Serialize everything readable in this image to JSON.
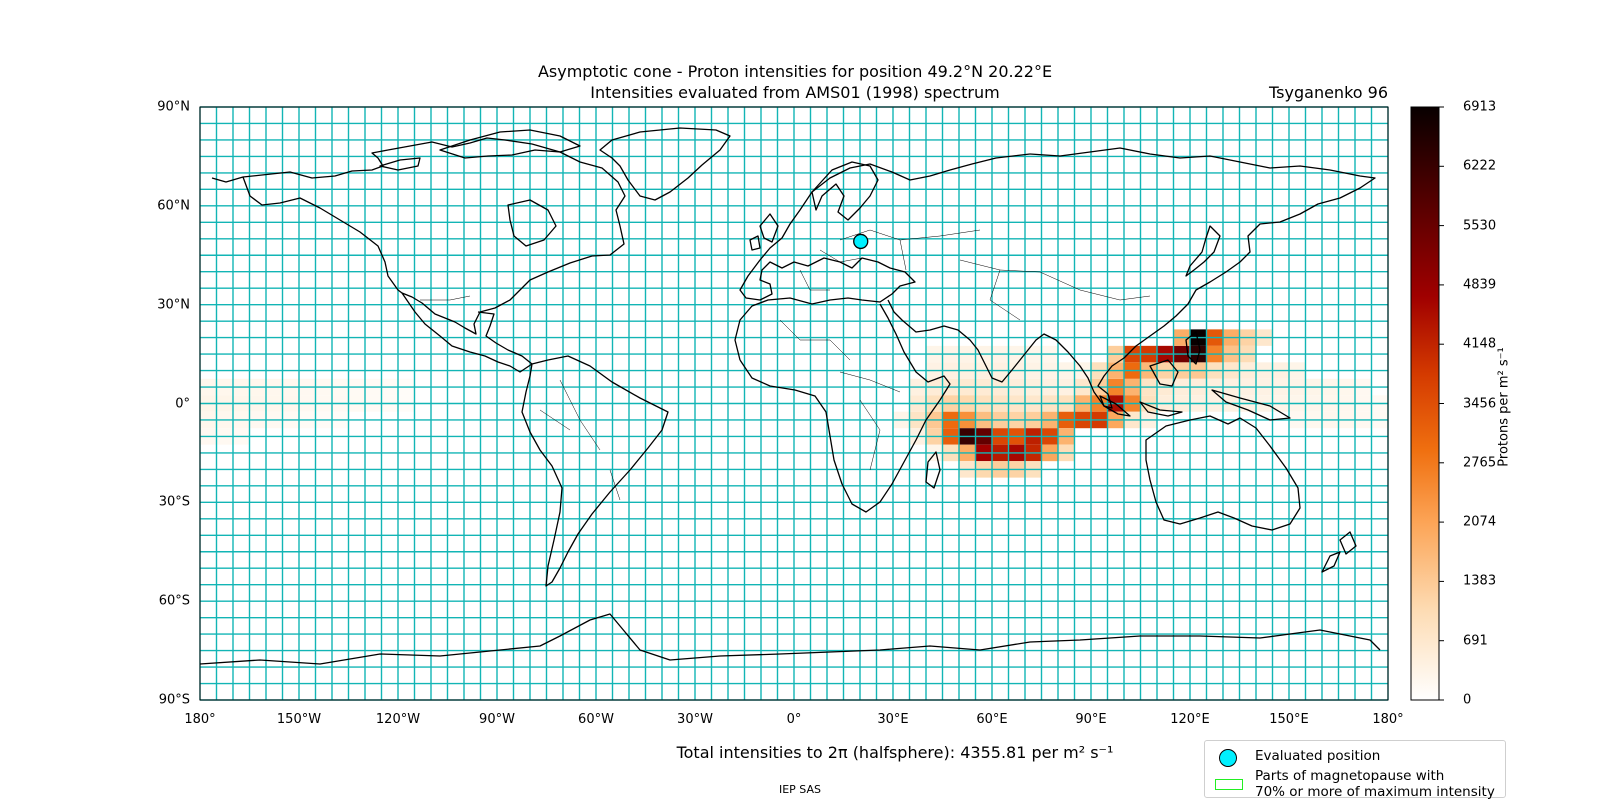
{
  "title": "Asymptotic cone - Proton intensities for position 49.2°N 20.22°E",
  "subtitle": "Intensities evaluated from AMS01 (1998) spectrum",
  "model": "Tsyganenko 96",
  "totals": "Total intensities to 2π (halfsphere): 4355.81 per m² s⁻¹",
  "institute": "IEP SAS",
  "lat_ticks": [
    "90°N",
    "60°N",
    "30°N",
    "0°",
    "30°S",
    "60°S",
    "90°S"
  ],
  "lon_ticks": [
    "180°",
    "150°W",
    "120°W",
    "90°W",
    "60°W",
    "30°W",
    "0°",
    "30°E",
    "60°E",
    "90°E",
    "120°E",
    "150°E",
    "180°"
  ],
  "colorbar": {
    "label": "Protons per m² s⁻¹",
    "ticks": [
      "0",
      "691",
      "1383",
      "2074",
      "2765",
      "3456",
      "4148",
      "4839",
      "5530",
      "6222",
      "6913"
    ],
    "range": [
      0,
      6913
    ],
    "colormap": "gist_heat_r"
  },
  "legend": {
    "marker_label": "Evaluated position",
    "magnetopause_label": "Parts of magnetopause with\n70% or more of maximum intensity",
    "marker_color": "#00f0ff",
    "magnetopause_color": "#22ee22"
  },
  "evaluated_position": {
    "lat": 49.2,
    "lon": 20.22
  },
  "grid": {
    "dlon": 5,
    "dlat": 5,
    "color": "#12b5b5"
  },
  "map_data": {
    "type": "heatmap",
    "projection": "plate-carree",
    "cells": [
      {
        "lon": -180,
        "lat": 5,
        "v": 250
      },
      {
        "lon": -175,
        "lat": 5,
        "v": 250
      },
      {
        "lon": -170,
        "lat": 5,
        "v": 250
      },
      {
        "lon": -165,
        "lat": 5,
        "v": 250
      },
      {
        "lon": -160,
        "lat": 5,
        "v": 230
      },
      {
        "lon": -155,
        "lat": 5,
        "v": 220
      },
      {
        "lon": -150,
        "lat": 5,
        "v": 200
      },
      {
        "lon": -145,
        "lat": 5,
        "v": 180
      },
      {
        "lon": -140,
        "lat": 5,
        "v": 160
      },
      {
        "lon": -135,
        "lat": 5,
        "v": 150
      },
      {
        "lon": -130,
        "lat": 5,
        "v": 140
      },
      {
        "lon": -125,
        "lat": 5,
        "v": 120
      },
      {
        "lon": -120,
        "lat": 5,
        "v": 100
      },
      {
        "lon": -180,
        "lat": 0,
        "v": 300
      },
      {
        "lon": -175,
        "lat": 0,
        "v": 300
      },
      {
        "lon": -170,
        "lat": 0,
        "v": 280
      },
      {
        "lon": -165,
        "lat": 0,
        "v": 260
      },
      {
        "lon": -160,
        "lat": 0,
        "v": 250
      },
      {
        "lon": -155,
        "lat": 0,
        "v": 230
      },
      {
        "lon": -150,
        "lat": 0,
        "v": 200
      },
      {
        "lon": -145,
        "lat": 0,
        "v": 180
      },
      {
        "lon": -140,
        "lat": 0,
        "v": 170
      },
      {
        "lon": -135,
        "lat": 0,
        "v": 160
      },
      {
        "lon": -130,
        "lat": 0,
        "v": 140
      },
      {
        "lon": -125,
        "lat": 0,
        "v": 120
      },
      {
        "lon": -120,
        "lat": 0,
        "v": 100
      },
      {
        "lon": -180,
        "lat": -5,
        "v": 250
      },
      {
        "lon": -175,
        "lat": -5,
        "v": 230
      },
      {
        "lon": -170,
        "lat": -5,
        "v": 220
      },
      {
        "lon": -165,
        "lat": -5,
        "v": 200
      },
      {
        "lon": -160,
        "lat": -5,
        "v": 180
      },
      {
        "lon": -155,
        "lat": -5,
        "v": 150
      },
      {
        "lon": -150,
        "lat": -5,
        "v": 120
      },
      {
        "lon": -145,
        "lat": -5,
        "v": 110
      },
      {
        "lon": -140,
        "lat": -5,
        "v": 100
      },
      {
        "lon": -180,
        "lat": -10,
        "v": 200
      },
      {
        "lon": -175,
        "lat": -10,
        "v": 180
      },
      {
        "lon": -170,
        "lat": -10,
        "v": 150
      },
      {
        "lon": 40,
        "lat": 15,
        "v": 300
      },
      {
        "lon": 45,
        "lat": 15,
        "v": 320
      },
      {
        "lon": 50,
        "lat": 15,
        "v": 330
      },
      {
        "lon": 55,
        "lat": 15,
        "v": 330
      },
      {
        "lon": 60,
        "lat": 15,
        "v": 320
      },
      {
        "lon": 65,
        "lat": 15,
        "v": 300
      },
      {
        "lon": 70,
        "lat": 15,
        "v": 280
      },
      {
        "lon": 75,
        "lat": 15,
        "v": 250
      },
      {
        "lon": 40,
        "lat": 10,
        "v": 380
      },
      {
        "lon": 45,
        "lat": 10,
        "v": 400
      },
      {
        "lon": 50,
        "lat": 10,
        "v": 420
      },
      {
        "lon": 55,
        "lat": 10,
        "v": 420
      },
      {
        "lon": 60,
        "lat": 10,
        "v": 400
      },
      {
        "lon": 65,
        "lat": 10,
        "v": 380
      },
      {
        "lon": 70,
        "lat": 10,
        "v": 350
      },
      {
        "lon": 75,
        "lat": 10,
        "v": 320
      },
      {
        "lon": 80,
        "lat": 10,
        "v": 300
      },
      {
        "lon": 35,
        "lat": 5,
        "v": 420
      },
      {
        "lon": 40,
        "lat": 5,
        "v": 550
      },
      {
        "lon": 45,
        "lat": 5,
        "v": 600
      },
      {
        "lon": 50,
        "lat": 5,
        "v": 620
      },
      {
        "lon": 55,
        "lat": 5,
        "v": 600
      },
      {
        "lon": 60,
        "lat": 5,
        "v": 550
      },
      {
        "lon": 65,
        "lat": 5,
        "v": 500
      },
      {
        "lon": 70,
        "lat": 5,
        "v": 450
      },
      {
        "lon": 75,
        "lat": 5,
        "v": 420
      },
      {
        "lon": 80,
        "lat": 5,
        "v": 400
      },
      {
        "lon": 35,
        "lat": 0,
        "v": 600
      },
      {
        "lon": 40,
        "lat": 0,
        "v": 900
      },
      {
        "lon": 45,
        "lat": 0,
        "v": 1200
      },
      {
        "lon": 50,
        "lat": 0,
        "v": 1100
      },
      {
        "lon": 55,
        "lat": 0,
        "v": 900
      },
      {
        "lon": 60,
        "lat": 0,
        "v": 800
      },
      {
        "lon": 65,
        "lat": 0,
        "v": 750
      },
      {
        "lon": 70,
        "lat": 0,
        "v": 700
      },
      {
        "lon": 75,
        "lat": 0,
        "v": 800
      },
      {
        "lon": 80,
        "lat": 0,
        "v": 900
      },
      {
        "lon": 35,
        "lat": -5,
        "v": 800
      },
      {
        "lon": 40,
        "lat": -5,
        "v": 1400
      },
      {
        "lon": 45,
        "lat": -5,
        "v": 3000
      },
      {
        "lon": 50,
        "lat": -5,
        "v": 2400
      },
      {
        "lon": 55,
        "lat": -5,
        "v": 1600
      },
      {
        "lon": 60,
        "lat": -5,
        "v": 1300
      },
      {
        "lon": 65,
        "lat": -5,
        "v": 1200
      },
      {
        "lon": 70,
        "lat": -5,
        "v": 1300
      },
      {
        "lon": 75,
        "lat": -5,
        "v": 1800
      },
      {
        "lon": 80,
        "lat": -5,
        "v": 3200
      },
      {
        "lon": 40,
        "lat": -10,
        "v": 1200
      },
      {
        "lon": 45,
        "lat": -10,
        "v": 3200
      },
      {
        "lon": 50,
        "lat": -10,
        "v": 6200
      },
      {
        "lon": 55,
        "lat": -10,
        "v": 5600
      },
      {
        "lon": 60,
        "lat": -10,
        "v": 3600
      },
      {
        "lon": 65,
        "lat": -10,
        "v": 3400
      },
      {
        "lon": 70,
        "lat": -10,
        "v": 4200
      },
      {
        "lon": 75,
        "lat": -10,
        "v": 3600
      },
      {
        "lon": 80,
        "lat": -10,
        "v": 1800
      },
      {
        "lon": 45,
        "lat": -15,
        "v": 900
      },
      {
        "lon": 50,
        "lat": -15,
        "v": 1900
      },
      {
        "lon": 55,
        "lat": -15,
        "v": 4700
      },
      {
        "lon": 60,
        "lat": -15,
        "v": 4300
      },
      {
        "lon": 65,
        "lat": -15,
        "v": 4600
      },
      {
        "lon": 70,
        "lat": -15,
        "v": 4100
      },
      {
        "lon": 75,
        "lat": -15,
        "v": 2000
      },
      {
        "lon": 80,
        "lat": -15,
        "v": 1000
      },
      {
        "lon": 50,
        "lat": -20,
        "v": 700
      },
      {
        "lon": 55,
        "lat": -20,
        "v": 1100
      },
      {
        "lon": 60,
        "lat": -20,
        "v": 1300
      },
      {
        "lon": 65,
        "lat": -20,
        "v": 1200
      },
      {
        "lon": 70,
        "lat": -20,
        "v": 900
      },
      {
        "lon": 85,
        "lat": 10,
        "v": 300
      },
      {
        "lon": 90,
        "lat": 10,
        "v": 400
      },
      {
        "lon": 85,
        "lat": 5,
        "v": 700
      },
      {
        "lon": 90,
        "lat": 5,
        "v": 1300
      },
      {
        "lon": 95,
        "lat": 5,
        "v": 2600
      },
      {
        "lon": 100,
        "lat": 5,
        "v": 1800
      },
      {
        "lon": 85,
        "lat": 0,
        "v": 1800
      },
      {
        "lon": 90,
        "lat": 0,
        "v": 2600
      },
      {
        "lon": 95,
        "lat": 0,
        "v": 4500
      },
      {
        "lon": 100,
        "lat": 0,
        "v": 2600
      },
      {
        "lon": 105,
        "lat": 0,
        "v": 900
      },
      {
        "lon": 85,
        "lat": -5,
        "v": 3600
      },
      {
        "lon": 90,
        "lat": -5,
        "v": 3800
      },
      {
        "lon": 95,
        "lat": -5,
        "v": 2000
      },
      {
        "lon": 100,
        "lat": -5,
        "v": 700
      },
      {
        "lon": 105,
        "lat": -5,
        "v": 400
      },
      {
        "lon": 90,
        "lat": 10,
        "v": 900
      },
      {
        "lon": 95,
        "lat": 10,
        "v": 1800
      },
      {
        "lon": 100,
        "lat": 10,
        "v": 3000
      },
      {
        "lon": 105,
        "lat": 10,
        "v": 1700
      },
      {
        "lon": 110,
        "lat": 10,
        "v": 1200
      },
      {
        "lon": 115,
        "lat": 10,
        "v": 1300
      },
      {
        "lon": 120,
        "lat": 10,
        "v": 1400
      },
      {
        "lon": 125,
        "lat": 10,
        "v": 900
      },
      {
        "lon": 130,
        "lat": 10,
        "v": 700
      },
      {
        "lon": 135,
        "lat": 10,
        "v": 500
      },
      {
        "lon": 140,
        "lat": 10,
        "v": 400
      },
      {
        "lon": 145,
        "lat": 10,
        "v": 400
      },
      {
        "lon": 150,
        "lat": 10,
        "v": 300
      },
      {
        "lon": 95,
        "lat": 15,
        "v": 1300
      },
      {
        "lon": 100,
        "lat": 15,
        "v": 3600
      },
      {
        "lon": 105,
        "lat": 15,
        "v": 3800
      },
      {
        "lon": 110,
        "lat": 15,
        "v": 4600
      },
      {
        "lon": 115,
        "lat": 15,
        "v": 5400
      },
      {
        "lon": 120,
        "lat": 15,
        "v": 6400
      },
      {
        "lon": 125,
        "lat": 15,
        "v": 2600
      },
      {
        "lon": 130,
        "lat": 15,
        "v": 1500
      },
      {
        "lon": 135,
        "lat": 15,
        "v": 1000
      },
      {
        "lon": 115,
        "lat": 20,
        "v": 1900
      },
      {
        "lon": 120,
        "lat": 20,
        "v": 6900
      },
      {
        "lon": 125,
        "lat": 20,
        "v": 3300
      },
      {
        "lon": 130,
        "lat": 20,
        "v": 1900
      },
      {
        "lon": 135,
        "lat": 20,
        "v": 1200
      },
      {
        "lon": 140,
        "lat": 20,
        "v": 700
      },
      {
        "lon": 105,
        "lat": 5,
        "v": 800
      },
      {
        "lon": 110,
        "lat": 5,
        "v": 600
      },
      {
        "lon": 115,
        "lat": 5,
        "v": 500
      },
      {
        "lon": 120,
        "lat": 5,
        "v": 500
      },
      {
        "lon": 125,
        "lat": 5,
        "v": 450
      },
      {
        "lon": 130,
        "lat": 5,
        "v": 420
      },
      {
        "lon": 135,
        "lat": 5,
        "v": 400
      },
      {
        "lon": 140,
        "lat": 5,
        "v": 380
      },
      {
        "lon": 145,
        "lat": 5,
        "v": 350
      },
      {
        "lon": 150,
        "lat": 5,
        "v": 320
      },
      {
        "lon": 155,
        "lat": 5,
        "v": 300
      },
      {
        "lon": 160,
        "lat": 5,
        "v": 280
      },
      {
        "lon": 165,
        "lat": 5,
        "v": 250
      },
      {
        "lon": 170,
        "lat": 5,
        "v": 200
      },
      {
        "lon": 110,
        "lat": 0,
        "v": 500
      },
      {
        "lon": 115,
        "lat": 0,
        "v": 450
      },
      {
        "lon": 120,
        "lat": 0,
        "v": 420
      },
      {
        "lon": 125,
        "lat": 0,
        "v": 400
      },
      {
        "lon": 130,
        "lat": 0,
        "v": 380
      },
      {
        "lon": 135,
        "lat": 0,
        "v": 350
      },
      {
        "lon": 140,
        "lat": 0,
        "v": 330
      },
      {
        "lon": 145,
        "lat": 0,
        "v": 300
      },
      {
        "lon": 150,
        "lat": 0,
        "v": 280
      },
      {
        "lon": 155,
        "lat": 0,
        "v": 260
      },
      {
        "lon": 160,
        "lat": 0,
        "v": 250
      },
      {
        "lon": 165,
        "lat": 0,
        "v": 230
      },
      {
        "lon": 170,
        "lat": 0,
        "v": 200
      },
      {
        "lon": 175,
        "lat": 0,
        "v": 150
      },
      {
        "lon": 150,
        "lat": -5,
        "v": 200
      },
      {
        "lon": 155,
        "lat": -5,
        "v": 220
      },
      {
        "lon": 160,
        "lat": -5,
        "v": 230
      },
      {
        "lon": 165,
        "lat": -5,
        "v": 220
      },
      {
        "lon": 170,
        "lat": -5,
        "v": 200
      },
      {
        "lon": 175,
        "lat": -5,
        "v": 150
      },
      {
        "lon": 30,
        "lat": -5,
        "v": 300
      },
      {
        "lon": 35,
        "lat": -10,
        "v": 400
      },
      {
        "lon": 40,
        "lat": -15,
        "v": 300
      }
    ]
  }
}
